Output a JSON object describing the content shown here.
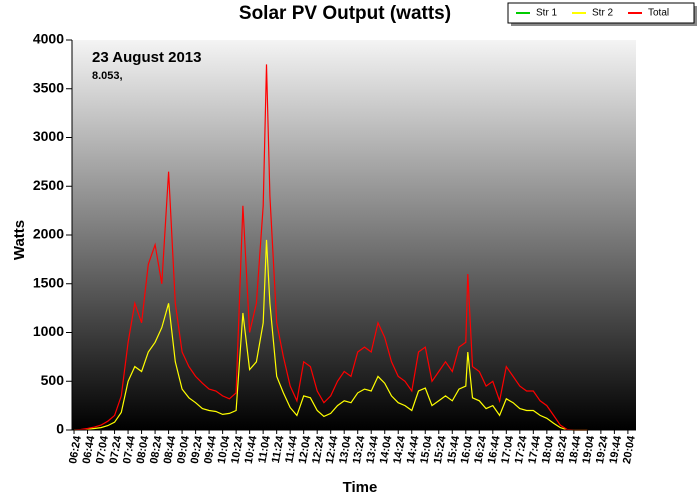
{
  "chart_data": {
    "type": "line",
    "title": "Solar PV Output (watts)",
    "x_label": "Time",
    "y_label": "Watts",
    "annotations": [
      "23 August 2013",
      "8.053,"
    ],
    "x": [
      384,
      394,
      404,
      414,
      424,
      434,
      444,
      454,
      464,
      474,
      484,
      494,
      504,
      514,
      524,
      534,
      544,
      554,
      564,
      574,
      584,
      594,
      604,
      614,
      624,
      634,
      644,
      654,
      664,
      669,
      674,
      684,
      694,
      704,
      714,
      724,
      734,
      744,
      754,
      764,
      774,
      784,
      794,
      804,
      814,
      824,
      834,
      844,
      854,
      864,
      874,
      884,
      894,
      904,
      914,
      924,
      934,
      944,
      954,
      964,
      967,
      974,
      984,
      994,
      1004,
      1014,
      1024,
      1034,
      1044,
      1054,
      1064,
      1074,
      1084,
      1094,
      1104,
      1114,
      1124,
      1134,
      1144
    ],
    "series": [
      {
        "name": "Str 1",
        "color": "#00cc00",
        "values": [
          null,
          null,
          null,
          null,
          null,
          null,
          null,
          null,
          null,
          null,
          null,
          null,
          null,
          null,
          null,
          null,
          null,
          null,
          null,
          null,
          null,
          null,
          null,
          null,
          null,
          null,
          null,
          null,
          null,
          null,
          null,
          null,
          null,
          null,
          null,
          null,
          null,
          null,
          null,
          null,
          null,
          null,
          null,
          null,
          null,
          null,
          null,
          null,
          null,
          null,
          null,
          null,
          null,
          null,
          null,
          null,
          null,
          null,
          null,
          null,
          null,
          null,
          null,
          null,
          null,
          null,
          null,
          null,
          null,
          null,
          null,
          null,
          null,
          null,
          null,
          null,
          null,
          null,
          null
        ]
      },
      {
        "name": "Str 2",
        "color": "#ffff00",
        "values": [
          0,
          2,
          8,
          15,
          25,
          45,
          80,
          180,
          500,
          650,
          600,
          800,
          900,
          1050,
          1300,
          700,
          420,
          330,
          280,
          220,
          200,
          190,
          160,
          170,
          200,
          1200,
          620,
          700,
          1100,
          1950,
          1300,
          550,
          380,
          230,
          150,
          350,
          330,
          200,
          140,
          170,
          250,
          300,
          280,
          380,
          420,
          400,
          550,
          480,
          350,
          280,
          250,
          200,
          400,
          430,
          250,
          300,
          350,
          300,
          420,
          450,
          800,
          330,
          300,
          220,
          250,
          150,
          320,
          280,
          220,
          200,
          200,
          150,
          120,
          70,
          25,
          2,
          0,
          0,
          0
        ]
      },
      {
        "name": "Total",
        "color": "#ff0000",
        "values": [
          0,
          5,
          15,
          30,
          50,
          90,
          150,
          350,
          900,
          1300,
          1100,
          1700,
          1900,
          1500,
          2650,
          1300,
          800,
          650,
          550,
          480,
          420,
          400,
          350,
          320,
          380,
          2300,
          1000,
          1300,
          2300,
          3750,
          2400,
          1100,
          750,
          450,
          300,
          700,
          650,
          400,
          280,
          350,
          500,
          600,
          550,
          800,
          850,
          800,
          1100,
          950,
          700,
          550,
          500,
          400,
          800,
          850,
          500,
          600,
          700,
          600,
          850,
          900,
          1600,
          650,
          600,
          450,
          500,
          300,
          650,
          550,
          450,
          400,
          400,
          300,
          250,
          150,
          50,
          5,
          0,
          0,
          0
        ]
      }
    ],
    "xlim": [
      381,
      1216
    ],
    "xticks": [
      {
        "value": 384,
        "label": "06:24"
      },
      {
        "value": 404,
        "label": "06:44"
      },
      {
        "value": 424,
        "label": "07:04"
      },
      {
        "value": 444,
        "label": "07:24"
      },
      {
        "value": 464,
        "label": "07:44"
      },
      {
        "value": 484,
        "label": "08:04"
      },
      {
        "value": 504,
        "label": "08:24"
      },
      {
        "value": 524,
        "label": "08:44"
      },
      {
        "value": 544,
        "label": "09:04"
      },
      {
        "value": 564,
        "label": "09:24"
      },
      {
        "value": 584,
        "label": "09:44"
      },
      {
        "value": 604,
        "label": "10:04"
      },
      {
        "value": 624,
        "label": "10:24"
      },
      {
        "value": 644,
        "label": "10:44"
      },
      {
        "value": 664,
        "label": "11:04"
      },
      {
        "value": 684,
        "label": "11:24"
      },
      {
        "value": 704,
        "label": "11:44"
      },
      {
        "value": 724,
        "label": "12:04"
      },
      {
        "value": 744,
        "label": "12:24"
      },
      {
        "value": 764,
        "label": "12:44"
      },
      {
        "value": 784,
        "label": "13:04"
      },
      {
        "value": 804,
        "label": "13:24"
      },
      {
        "value": 824,
        "label": "13:44"
      },
      {
        "value": 844,
        "label": "14:04"
      },
      {
        "value": 864,
        "label": "14:24"
      },
      {
        "value": 884,
        "label": "14:44"
      },
      {
        "value": 904,
        "label": "15:04"
      },
      {
        "value": 924,
        "label": "15:24"
      },
      {
        "value": 944,
        "label": "15:44"
      },
      {
        "value": 964,
        "label": "16:04"
      },
      {
        "value": 984,
        "label": "16:24"
      },
      {
        "value": 1004,
        "label": "16:44"
      },
      {
        "value": 1024,
        "label": "17:04"
      },
      {
        "value": 1044,
        "label": "17:24"
      },
      {
        "value": 1064,
        "label": "17:44"
      },
      {
        "value": 1084,
        "label": "18:04"
      },
      {
        "value": 1104,
        "label": "18:24"
      },
      {
        "value": 1124,
        "label": "18:44"
      },
      {
        "value": 1144,
        "label": "19:04"
      },
      {
        "value": 1164,
        "label": "19:24"
      },
      {
        "value": 1184,
        "label": "19:44"
      },
      {
        "value": 1204,
        "label": "20:04"
      }
    ],
    "ylim": [
      0,
      4000
    ],
    "yticks": [
      0,
      500,
      1000,
      1500,
      2000,
      2500,
      3000,
      3500,
      4000
    ],
    "grid": false,
    "legend_position": "top-right"
  }
}
